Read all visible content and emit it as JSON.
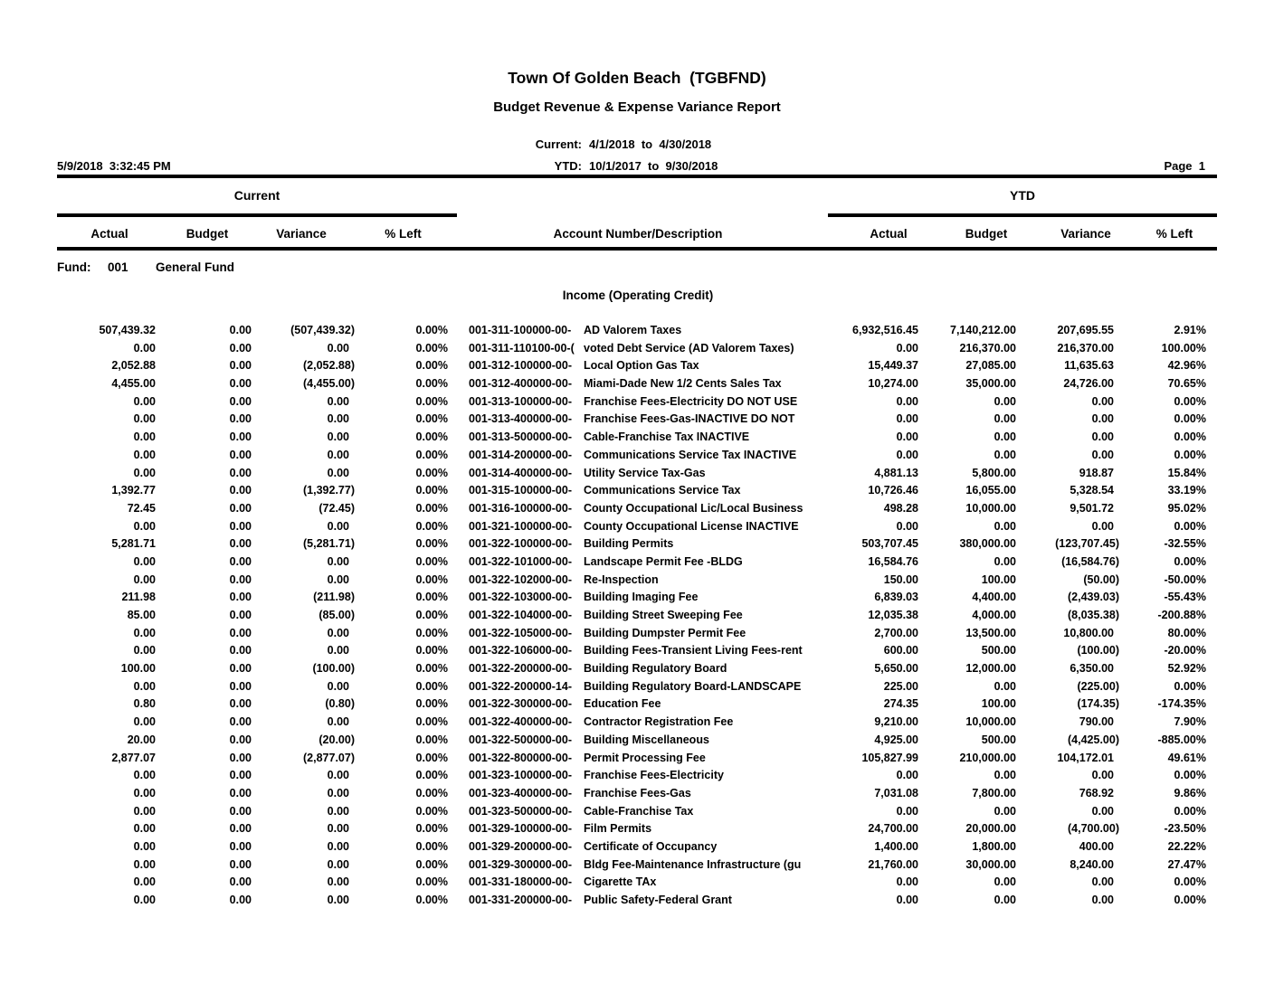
{
  "report": {
    "title": "Town Of Golden Beach  (TGBFND)",
    "subtitle": "Budget Revenue & Expense Variance Report",
    "current_period_label": "Current:",
    "current_period": "4/1/2018  to  4/30/2018",
    "ytd_period_label": "YTD:",
    "ytd_period": "10/1/2017  to  9/30/2018",
    "printed_datetime": "5/9/2018  3:32:45 PM",
    "page_label": "Page  1"
  },
  "table": {
    "group_headers": {
      "current": "Current",
      "ytd": "YTD"
    },
    "columns": {
      "actual": "Actual",
      "budget": "Budget",
      "variance": "Variance",
      "pct_left": "% Left",
      "account": "Account Number/Description"
    },
    "fund": {
      "label": "Fund:",
      "number": "001",
      "name": "General Fund"
    },
    "section": "Income (Operating Credit)",
    "rows": [
      {
        "acct": "001-311-100000-00-",
        "desc": "AD Valorem Taxes",
        "c_act": "507,439.32",
        "c_bud": "0.00",
        "c_var": "(507,439.32)",
        "c_pct": "0.00%",
        "y_act": "6,932,516.45",
        "y_bud": "7,140,212.00",
        "y_var": "207,695.55",
        "y_pct": "2.91%"
      },
      {
        "acct": "001-311-110100-00-(",
        "desc": "voted Debt Service (AD Valorem Taxes)",
        "c_act": "0.00",
        "c_bud": "0.00",
        "c_var": "0.00",
        "c_pct": "0.00%",
        "y_act": "0.00",
        "y_bud": "216,370.00",
        "y_var": "216,370.00",
        "y_pct": "100.00%"
      },
      {
        "acct": "001-312-100000-00-",
        "desc": "Local Option Gas Tax",
        "c_act": "2,052.88",
        "c_bud": "0.00",
        "c_var": "(2,052.88)",
        "c_pct": "0.00%",
        "y_act": "15,449.37",
        "y_bud": "27,085.00",
        "y_var": "11,635.63",
        "y_pct": "42.96%"
      },
      {
        "acct": "001-312-400000-00-",
        "desc": "Miami-Dade New 1/2 Cents Sales Tax",
        "c_act": "4,455.00",
        "c_bud": "0.00",
        "c_var": "(4,455.00)",
        "c_pct": "0.00%",
        "y_act": "10,274.00",
        "y_bud": "35,000.00",
        "y_var": "24,726.00",
        "y_pct": "70.65%"
      },
      {
        "acct": "001-313-100000-00-",
        "desc": "Franchise Fees-Electricity DO NOT USE",
        "c_act": "0.00",
        "c_bud": "0.00",
        "c_var": "0.00",
        "c_pct": "0.00%",
        "y_act": "0.00",
        "y_bud": "0.00",
        "y_var": "0.00",
        "y_pct": "0.00%"
      },
      {
        "acct": "001-313-400000-00-",
        "desc": "Franchise Fees-Gas-INACTIVE DO NOT",
        "c_act": "0.00",
        "c_bud": "0.00",
        "c_var": "0.00",
        "c_pct": "0.00%",
        "y_act": "0.00",
        "y_bud": "0.00",
        "y_var": "0.00",
        "y_pct": "0.00%"
      },
      {
        "acct": "001-313-500000-00-",
        "desc": "Cable-Franchise Tax INACTIVE",
        "c_act": "0.00",
        "c_bud": "0.00",
        "c_var": "0.00",
        "c_pct": "0.00%",
        "y_act": "0.00",
        "y_bud": "0.00",
        "y_var": "0.00",
        "y_pct": "0.00%"
      },
      {
        "acct": "001-314-200000-00-",
        "desc": "Communications Service Tax INACTIVE",
        "c_act": "0.00",
        "c_bud": "0.00",
        "c_var": "0.00",
        "c_pct": "0.00%",
        "y_act": "0.00",
        "y_bud": "0.00",
        "y_var": "0.00",
        "y_pct": "0.00%"
      },
      {
        "acct": "001-314-400000-00-",
        "desc": "Utility Service Tax-Gas",
        "c_act": "0.00",
        "c_bud": "0.00",
        "c_var": "0.00",
        "c_pct": "0.00%",
        "y_act": "4,881.13",
        "y_bud": "5,800.00",
        "y_var": "918.87",
        "y_pct": "15.84%"
      },
      {
        "acct": "001-315-100000-00-",
        "desc": "Communications Service Tax",
        "c_act": "1,392.77",
        "c_bud": "0.00",
        "c_var": "(1,392.77)",
        "c_pct": "0.00%",
        "y_act": "10,726.46",
        "y_bud": "16,055.00",
        "y_var": "5,328.54",
        "y_pct": "33.19%"
      },
      {
        "acct": "001-316-100000-00-",
        "desc": "County Occupational Lic/Local Business",
        "c_act": "72.45",
        "c_bud": "0.00",
        "c_var": "(72.45)",
        "c_pct": "0.00%",
        "y_act": "498.28",
        "y_bud": "10,000.00",
        "y_var": "9,501.72",
        "y_pct": "95.02%"
      },
      {
        "acct": "001-321-100000-00-",
        "desc": "County Occupational License INACTIVE",
        "c_act": "0.00",
        "c_bud": "0.00",
        "c_var": "0.00",
        "c_pct": "0.00%",
        "y_act": "0.00",
        "y_bud": "0.00",
        "y_var": "0.00",
        "y_pct": "0.00%"
      },
      {
        "acct": "001-322-100000-00-",
        "desc": "Building Permits",
        "c_act": "5,281.71",
        "c_bud": "0.00",
        "c_var": "(5,281.71)",
        "c_pct": "0.00%",
        "y_act": "503,707.45",
        "y_bud": "380,000.00",
        "y_var": "(123,707.45)",
        "y_pct": "-32.55%"
      },
      {
        "acct": "001-322-101000-00-",
        "desc": "Landscape Permit Fee -BLDG",
        "c_act": "0.00",
        "c_bud": "0.00",
        "c_var": "0.00",
        "c_pct": "0.00%",
        "y_act": "16,584.76",
        "y_bud": "0.00",
        "y_var": "(16,584.76)",
        "y_pct": "0.00%"
      },
      {
        "acct": "001-322-102000-00-",
        "desc": "Re-Inspection",
        "c_act": "0.00",
        "c_bud": "0.00",
        "c_var": "0.00",
        "c_pct": "0.00%",
        "y_act": "150.00",
        "y_bud": "100.00",
        "y_var": "(50.00)",
        "y_pct": "-50.00%"
      },
      {
        "acct": "001-322-103000-00-",
        "desc": "Building Imaging Fee",
        "c_act": "211.98",
        "c_bud": "0.00",
        "c_var": "(211.98)",
        "c_pct": "0.00%",
        "y_act": "6,839.03",
        "y_bud": "4,400.00",
        "y_var": "(2,439.03)",
        "y_pct": "-55.43%"
      },
      {
        "acct": "001-322-104000-00-",
        "desc": "Building Street Sweeping Fee",
        "c_act": "85.00",
        "c_bud": "0.00",
        "c_var": "(85.00)",
        "c_pct": "0.00%",
        "y_act": "12,035.38",
        "y_bud": "4,000.00",
        "y_var": "(8,035.38)",
        "y_pct": "-200.88%"
      },
      {
        "acct": "001-322-105000-00-",
        "desc": "Building Dumpster Permit Fee",
        "c_act": "0.00",
        "c_bud": "0.00",
        "c_var": "0.00",
        "c_pct": "0.00%",
        "y_act": "2,700.00",
        "y_bud": "13,500.00",
        "y_var": "10,800.00",
        "y_pct": "80.00%"
      },
      {
        "acct": "001-322-106000-00-",
        "desc": "Building Fees-Transient Living Fees-rent",
        "c_act": "0.00",
        "c_bud": "0.00",
        "c_var": "0.00",
        "c_pct": "0.00%",
        "y_act": "600.00",
        "y_bud": "500.00",
        "y_var": "(100.00)",
        "y_pct": "-20.00%"
      },
      {
        "acct": "001-322-200000-00-",
        "desc": "Building Regulatory Board",
        "c_act": "100.00",
        "c_bud": "0.00",
        "c_var": "(100.00)",
        "c_pct": "0.00%",
        "y_act": "5,650.00",
        "y_bud": "12,000.00",
        "y_var": "6,350.00",
        "y_pct": "52.92%"
      },
      {
        "acct": "001-322-200000-14-",
        "desc": "Building Regulatory Board-LANDSCAPE",
        "c_act": "0.00",
        "c_bud": "0.00",
        "c_var": "0.00",
        "c_pct": "0.00%",
        "y_act": "225.00",
        "y_bud": "0.00",
        "y_var": "(225.00)",
        "y_pct": "0.00%"
      },
      {
        "acct": "001-322-300000-00-",
        "desc": "Education Fee",
        "c_act": "0.80",
        "c_bud": "0.00",
        "c_var": "(0.80)",
        "c_pct": "0.00%",
        "y_act": "274.35",
        "y_bud": "100.00",
        "y_var": "(174.35)",
        "y_pct": "-174.35%"
      },
      {
        "acct": "001-322-400000-00-",
        "desc": "Contractor Registration Fee",
        "c_act": "0.00",
        "c_bud": "0.00",
        "c_var": "0.00",
        "c_pct": "0.00%",
        "y_act": "9,210.00",
        "y_bud": "10,000.00",
        "y_var": "790.00",
        "y_pct": "7.90%"
      },
      {
        "acct": "001-322-500000-00-",
        "desc": "Building Miscellaneous",
        "c_act": "20.00",
        "c_bud": "0.00",
        "c_var": "(20.00)",
        "c_pct": "0.00%",
        "y_act": "4,925.00",
        "y_bud": "500.00",
        "y_var": "(4,425.00)",
        "y_pct": "-885.00%"
      },
      {
        "acct": "001-322-800000-00-",
        "desc": "Permit Processing Fee",
        "c_act": "2,877.07",
        "c_bud": "0.00",
        "c_var": "(2,877.07)",
        "c_pct": "0.00%",
        "y_act": "105,827.99",
        "y_bud": "210,000.00",
        "y_var": "104,172.01",
        "y_pct": "49.61%"
      },
      {
        "acct": "001-323-100000-00-",
        "desc": "Franchise Fees-Electricity",
        "c_act": "0.00",
        "c_bud": "0.00",
        "c_var": "0.00",
        "c_pct": "0.00%",
        "y_act": "0.00",
        "y_bud": "0.00",
        "y_var": "0.00",
        "y_pct": "0.00%"
      },
      {
        "acct": "001-323-400000-00-",
        "desc": "Franchise Fees-Gas",
        "c_act": "0.00",
        "c_bud": "0.00",
        "c_var": "0.00",
        "c_pct": "0.00%",
        "y_act": "7,031.08",
        "y_bud": "7,800.00",
        "y_var": "768.92",
        "y_pct": "9.86%"
      },
      {
        "acct": "001-323-500000-00-",
        "desc": "Cable-Franchise Tax",
        "c_act": "0.00",
        "c_bud": "0.00",
        "c_var": "0.00",
        "c_pct": "0.00%",
        "y_act": "0.00",
        "y_bud": "0.00",
        "y_var": "0.00",
        "y_pct": "0.00%"
      },
      {
        "acct": "001-329-100000-00-",
        "desc": "Film Permits",
        "c_act": "0.00",
        "c_bud": "0.00",
        "c_var": "0.00",
        "c_pct": "0.00%",
        "y_act": "24,700.00",
        "y_bud": "20,000.00",
        "y_var": "(4,700.00)",
        "y_pct": "-23.50%"
      },
      {
        "acct": "001-329-200000-00-",
        "desc": "Certificate of Occupancy",
        "c_act": "0.00",
        "c_bud": "0.00",
        "c_var": "0.00",
        "c_pct": "0.00%",
        "y_act": "1,400.00",
        "y_bud": "1,800.00",
        "y_var": "400.00",
        "y_pct": "22.22%"
      },
      {
        "acct": "001-329-300000-00-",
        "desc": "Bldg Fee-Maintenance Infrastructure (gu",
        "c_act": "0.00",
        "c_bud": "0.00",
        "c_var": "0.00",
        "c_pct": "0.00%",
        "y_act": "21,760.00",
        "y_bud": "30,000.00",
        "y_var": "8,240.00",
        "y_pct": "27.47%"
      },
      {
        "acct": "001-331-180000-00-",
        "desc": "Cigarette TAx",
        "c_act": "0.00",
        "c_bud": "0.00",
        "c_var": "0.00",
        "c_pct": "0.00%",
        "y_act": "0.00",
        "y_bud": "0.00",
        "y_var": "0.00",
        "y_pct": "0.00%"
      },
      {
        "acct": "001-331-200000-00-",
        "desc": "Public Safety-Federal Grant",
        "c_act": "0.00",
        "c_bud": "0.00",
        "c_var": "0.00",
        "c_pct": "0.00%",
        "y_act": "0.00",
        "y_bud": "0.00",
        "y_var": "0.00",
        "y_pct": "0.00%"
      }
    ]
  }
}
